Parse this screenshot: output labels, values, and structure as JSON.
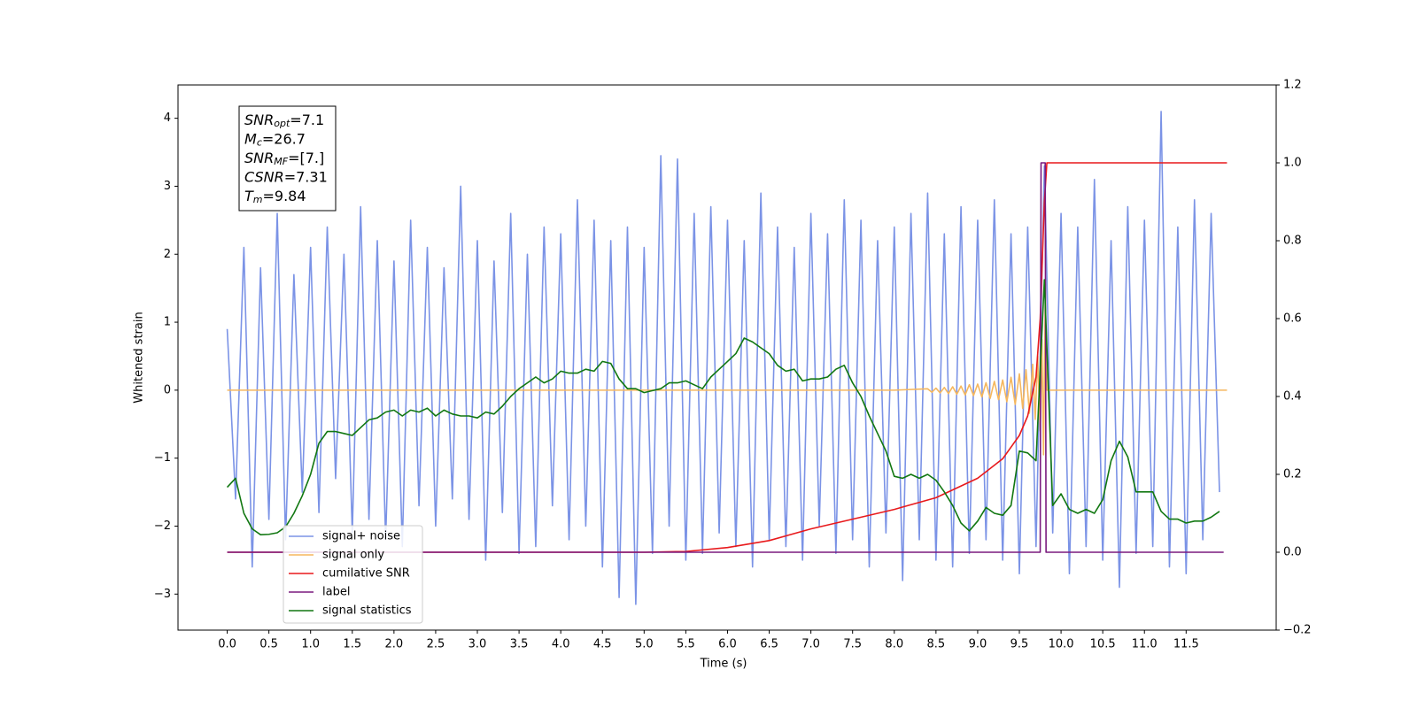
{
  "chart_data": {
    "type": "line",
    "xlabel": "Time (s)",
    "ylabel": "Whitened strain",
    "xlim": [
      -0.59,
      12.58
    ],
    "ylim": [
      -3.53,
      4.49
    ],
    "y2lim": [
      -0.2,
      1.2
    ],
    "xticks": [
      {
        "value": 0,
        "label": "0.0"
      },
      {
        "value": 0.5,
        "label": "0.5"
      },
      {
        "value": 1,
        "label": "1.0"
      },
      {
        "value": 1.5,
        "label": "1.5"
      },
      {
        "value": 2,
        "label": "2.0"
      },
      {
        "value": 2.5,
        "label": "2.5"
      },
      {
        "value": 3,
        "label": "3.0"
      },
      {
        "value": 3.5,
        "label": "3.5"
      },
      {
        "value": 4,
        "label": "4.0"
      },
      {
        "value": 4.5,
        "label": "4.5"
      },
      {
        "value": 5,
        "label": "5.0"
      },
      {
        "value": 5.5,
        "label": "5.5"
      },
      {
        "value": 6,
        "label": "6.0"
      },
      {
        "value": 6.5,
        "label": "6.5"
      },
      {
        "value": 7,
        "label": "7.0"
      },
      {
        "value": 7.5,
        "label": "7.5"
      },
      {
        "value": 8,
        "label": "8.0"
      },
      {
        "value": 8.5,
        "label": "8.5"
      },
      {
        "value": 9,
        "label": "9.0"
      },
      {
        "value": 9.5,
        "label": "9.5"
      },
      {
        "value": 10,
        "label": "10.0"
      },
      {
        "value": 10.5,
        "label": "10.5"
      },
      {
        "value": 11,
        "label": "11.0"
      },
      {
        "value": 11.5,
        "label": "11.5"
      }
    ],
    "yticks": [
      {
        "value": -3,
        "label": "−3"
      },
      {
        "value": -2,
        "label": "−2"
      },
      {
        "value": -1,
        "label": "−1"
      },
      0,
      1,
      2,
      3,
      4
    ],
    "y2ticks": [
      {
        "value": -0.2,
        "label": "−0.2"
      },
      {
        "value": 0,
        "label": "0.0"
      },
      {
        "value": 0.2,
        "label": "0.2"
      },
      {
        "value": 0.4,
        "label": "0.4"
      },
      {
        "value": 0.6,
        "label": "0.6"
      },
      {
        "value": 0.8,
        "label": "0.8"
      },
      {
        "value": 1,
        "label": "1.0"
      },
      {
        "value": 1.2,
        "label": "1.2"
      }
    ],
    "grid": false,
    "legend_loc": "lower left",
    "annotation": [
      {
        "text": "SNR",
        "sub": "opt",
        "value": "=7.1"
      },
      {
        "text": "M",
        "sub": "c",
        "value": "=26.7"
      },
      {
        "text": "SNR",
        "sub": "MF",
        "value": "=[7.]"
      },
      {
        "text": "CSNR",
        "sub": "",
        "value": "=7.31"
      },
      {
        "text": "T",
        "sub": "m",
        "value": "=9.84"
      }
    ],
    "x": [
      0,
      0.1,
      0.2,
      0.3,
      0.4,
      0.5,
      0.6,
      0.7,
      0.8,
      0.9,
      1,
      1.1,
      1.2,
      1.3,
      1.4,
      1.5,
      1.6,
      1.7,
      1.8,
      1.9,
      2,
      2.1,
      2.2,
      2.3,
      2.4,
      2.5,
      2.6,
      2.7,
      2.8,
      2.9,
      3,
      3.1,
      3.2,
      3.3,
      3.4,
      3.5,
      3.6,
      3.7,
      3.8,
      3.9,
      4,
      4.1,
      4.2,
      4.3,
      4.4,
      4.5,
      4.6,
      4.7,
      4.8,
      4.9,
      5,
      5.1,
      5.2,
      5.3,
      5.4,
      5.5,
      5.6,
      5.7,
      5.8,
      5.9,
      6,
      6.1,
      6.2,
      6.3,
      6.4,
      6.5,
      6.6,
      6.7,
      6.8,
      6.9,
      7,
      7.1,
      7.2,
      7.3,
      7.4,
      7.5,
      7.6,
      7.7,
      7.8,
      7.9,
      8,
      8.1,
      8.2,
      8.3,
      8.4,
      8.5,
      8.6,
      8.7,
      8.8,
      8.9,
      9,
      9.1,
      9.2,
      9.3,
      9.4,
      9.5,
      9.6,
      9.7,
      9.8,
      9.9,
      10,
      10.1,
      10.2,
      10.3,
      10.4,
      10.5,
      10.6,
      10.7,
      10.8,
      10.9,
      11,
      11.1,
      11.2,
      11.3,
      11.4,
      11.5,
      11.6,
      11.7,
      11.8,
      11.9
    ],
    "series": [
      {
        "name": "signal+ noise",
        "color": "#7b93e6",
        "axis": "y",
        "values": [
          0.9,
          -1.6,
          2.1,
          -2.6,
          1.8,
          -1.9,
          2.6,
          -2.2,
          1.7,
          -1.5,
          2.1,
          -1.8,
          2.4,
          -1.3,
          2.0,
          -2.1,
          2.7,
          -1.9,
          2.2,
          -2.2,
          1.9,
          -2.3,
          2.5,
          -1.7,
          2.1,
          -2.0,
          1.8,
          -1.6,
          3.0,
          -1.9,
          2.2,
          -2.5,
          1.9,
          -1.8,
          2.6,
          -2.4,
          2.0,
          -2.3,
          2.4,
          -1.7,
          2.3,
          -2.2,
          2.8,
          -2.0,
          2.5,
          -2.6,
          2.2,
          -3.05,
          2.4,
          -3.15,
          2.1,
          -2.4,
          3.45,
          -2.0,
          3.4,
          -2.5,
          2.6,
          -2.4,
          2.7,
          -2.1,
          2.5,
          -2.3,
          2.2,
          -2.6,
          2.9,
          -2.2,
          2.4,
          -2.3,
          2.1,
          -2.5,
          2.6,
          -2.0,
          2.3,
          -2.4,
          2.8,
          -2.2,
          2.5,
          -2.6,
          2.2,
          -2.1,
          2.4,
          -2.8,
          2.6,
          -2.2,
          2.9,
          -2.5,
          2.3,
          -2.6,
          2.7,
          -2.4,
          2.5,
          -2.2,
          2.8,
          -2.5,
          2.3,
          -2.7,
          2.4,
          -2.3,
          3.3,
          -2.1,
          2.6,
          -2.7,
          2.4,
          -2.3,
          3.1,
          -2.5,
          2.2,
          -2.9,
          2.7,
          -2.4,
          2.5,
          -2.3,
          4.1,
          -2.6,
          2.4,
          -2.7,
          2.8,
          -2.2,
          2.6,
          -1.5
        ]
      },
      {
        "name": "signal only",
        "color": "#f5b75e",
        "axis": "y",
        "x": [
          0,
          8.0,
          8.4,
          8.45,
          8.5,
          8.55,
          8.6,
          8.65,
          8.7,
          8.75,
          8.8,
          8.85,
          8.9,
          8.95,
          9.0,
          9.05,
          9.1,
          9.15,
          9.2,
          9.25,
          9.3,
          9.35,
          9.4,
          9.45,
          9.5,
          9.54,
          9.58,
          9.62,
          9.66,
          9.69,
          9.72,
          9.75,
          9.77,
          9.79,
          9.81,
          9.83,
          11.99
        ],
        "values": [
          0,
          0,
          0.02,
          -0.03,
          0.03,
          -0.04,
          0.04,
          -0.05,
          0.05,
          -0.06,
          0.06,
          -0.07,
          0.08,
          -0.08,
          0.09,
          -0.1,
          0.11,
          -0.12,
          0.13,
          -0.14,
          0.15,
          -0.17,
          0.19,
          -0.21,
          0.24,
          -0.27,
          0.3,
          -0.34,
          0.38,
          -0.43,
          0.5,
          -0.6,
          0.75,
          -0.95,
          1.3,
          0,
          0
        ]
      },
      {
        "name": "cumilative SNR",
        "color": "#e8191c",
        "axis": "y2",
        "x": [
          0,
          5.0,
          5.5,
          6.0,
          6.5,
          7.0,
          7.5,
          8.0,
          8.5,
          9.0,
          9.3,
          9.5,
          9.6,
          9.7,
          9.75,
          9.8,
          9.83,
          11.99
        ],
        "values": [
          0,
          0,
          0.002,
          0.012,
          0.03,
          0.06,
          0.085,
          0.11,
          0.14,
          0.19,
          0.24,
          0.3,
          0.35,
          0.45,
          0.6,
          0.9,
          1,
          1
        ]
      },
      {
        "name": "label",
        "color": "#7a1a7e",
        "axis": "y2",
        "x": [
          0,
          9.75,
          9.76,
          9.81,
          9.82,
          11.95
        ],
        "values": [
          0,
          0,
          1,
          1,
          0,
          0
        ]
      },
      {
        "name": "signal statistics",
        "color": "#117711",
        "axis": "y2",
        "values": [
          0.167,
          0.19,
          0.1,
          0.06,
          0.045,
          0.046,
          0.05,
          0.065,
          0.1,
          0.145,
          0.2,
          0.28,
          0.31,
          0.31,
          0.305,
          0.3,
          0.32,
          0.34,
          0.345,
          0.36,
          0.365,
          0.35,
          0.365,
          0.36,
          0.37,
          0.35,
          0.365,
          0.355,
          0.35,
          0.35,
          0.345,
          0.36,
          0.355,
          0.375,
          0.4,
          0.42,
          0.435,
          0.45,
          0.435,
          0.445,
          0.465,
          0.46,
          0.46,
          0.47,
          0.465,
          0.49,
          0.485,
          0.445,
          0.42,
          0.42,
          0.41,
          0.415,
          0.42,
          0.435,
          0.435,
          0.44,
          0.43,
          0.42,
          0.45,
          0.47,
          0.49,
          0.51,
          0.55,
          0.54,
          0.525,
          0.51,
          0.48,
          0.465,
          0.47,
          0.44,
          0.445,
          0.445,
          0.45,
          0.47,
          0.48,
          0.435,
          0.4,
          0.35,
          0.305,
          0.26,
          0.195,
          0.19,
          0.2,
          0.19,
          0.2,
          0.185,
          0.155,
          0.12,
          0.075,
          0.055,
          0.08,
          0.115,
          0.1,
          0.095,
          0.12,
          0.26,
          0.255,
          0.235,
          0.7,
          0.12,
          0.15,
          0.11,
          0.1,
          0.11,
          0.1,
          0.135,
          0.235,
          0.285,
          0.245,
          0.155,
          0.155,
          0.155,
          0.105,
          0.085,
          0.085,
          0.075,
          0.08,
          0.08,
          0.09,
          0.105
        ]
      }
    ]
  }
}
